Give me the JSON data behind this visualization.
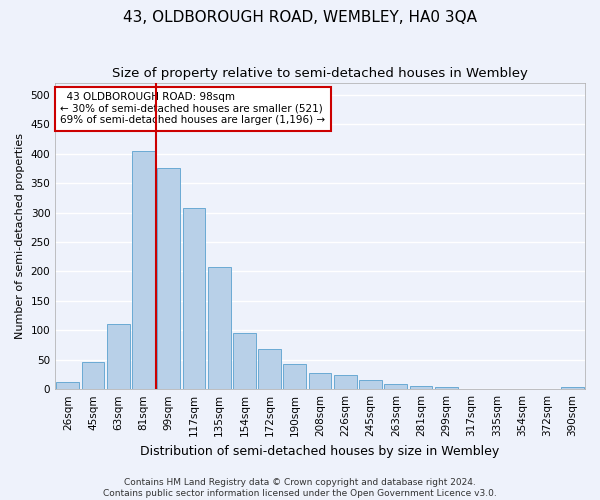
{
  "title": "43, OLDBOROUGH ROAD, WEMBLEY, HA0 3QA",
  "subtitle": "Size of property relative to semi-detached houses in Wembley",
  "xlabel": "Distribution of semi-detached houses by size in Wembley",
  "ylabel": "Number of semi-detached properties",
  "categories": [
    "26sqm",
    "45sqm",
    "63sqm",
    "81sqm",
    "99sqm",
    "117sqm",
    "135sqm",
    "154sqm",
    "172sqm",
    "190sqm",
    "208sqm",
    "226sqm",
    "245sqm",
    "263sqm",
    "281sqm",
    "299sqm",
    "317sqm",
    "335sqm",
    "354sqm",
    "372sqm",
    "390sqm"
  ],
  "values": [
    12,
    47,
    110,
    405,
    375,
    308,
    208,
    96,
    69,
    43,
    27,
    24,
    16,
    9,
    5,
    3,
    1,
    1,
    0,
    0,
    3
  ],
  "bar_color": "#b8d0e8",
  "bar_edge_color": "#6aaad4",
  "highlight_x": "99sqm",
  "highlight_line_color": "#cc0000",
  "annotation_text": "  43 OLDBOROUGH ROAD: 98sqm\n← 30% of semi-detached houses are smaller (521)\n69% of semi-detached houses are larger (1,196) →",
  "annotation_box_color": "#ffffff",
  "annotation_box_edge_color": "#cc0000",
  "ylim": [
    0,
    520
  ],
  "yticks": [
    0,
    50,
    100,
    150,
    200,
    250,
    300,
    350,
    400,
    450,
    500
  ],
  "footer_line1": "Contains HM Land Registry data © Crown copyright and database right 2024.",
  "footer_line2": "Contains public sector information licensed under the Open Government Licence v3.0.",
  "bg_color": "#eef2fb",
  "grid_color": "#ffffff",
  "title_fontsize": 11,
  "subtitle_fontsize": 9.5,
  "xlabel_fontsize": 9,
  "ylabel_fontsize": 8,
  "tick_fontsize": 7.5,
  "footer_fontsize": 6.5
}
